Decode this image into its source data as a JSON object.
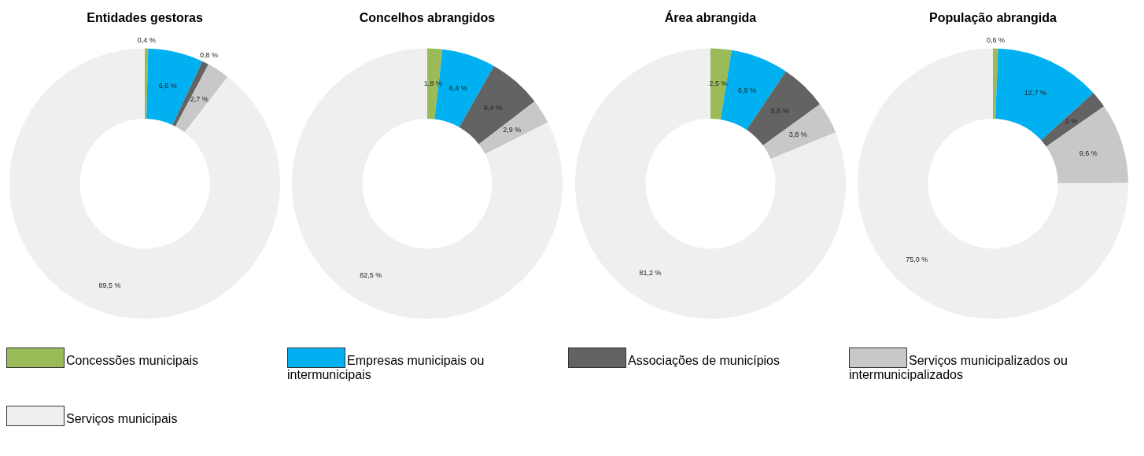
{
  "chart_data": [
    {
      "type": "donut",
      "title": "Entidades gestoras",
      "legend": "bottom",
      "categories": [
        "Concessões municipais",
        "Empresas municipais ou intermunicipais",
        "Associações de municípios",
        "Serviços municipalizados ou intermunicipalizados",
        "Serviços municipais"
      ],
      "colors": [
        "#9bbb59",
        "#00b0f0",
        "#636363",
        "#c8c8c8",
        "#efefef"
      ],
      "values": [
        0.4,
        6.6,
        0.8,
        2.7,
        89.5
      ],
      "value_labels": [
        "0,4 %",
        "6,6 %",
        "0,8 %",
        "2,7 %",
        "89,5 %"
      ]
    },
    {
      "type": "donut",
      "title": "Concelhos abrangidos",
      "colors": [
        "#9bbb59",
        "#00b0f0",
        "#636363",
        "#c8c8c8",
        "#efefef"
      ],
      "values": [
        1.8,
        6.4,
        6.4,
        2.9,
        82.5
      ],
      "value_labels": [
        "1,8 %",
        "6,4 %",
        "6,4 %",
        "2,9 %",
        "82,5 %"
      ]
    },
    {
      "type": "donut",
      "title": "Área abrangida",
      "colors": [
        "#9bbb59",
        "#00b0f0",
        "#636363",
        "#c8c8c8",
        "#efefef"
      ],
      "values": [
        2.5,
        6.9,
        5.6,
        3.8,
        81.2
      ],
      "value_labels": [
        "2,5 %",
        "6,9 %",
        "5,6 %",
        "3,8 %",
        "81,2 %"
      ]
    },
    {
      "type": "donut",
      "title": "População abrangida",
      "colors": [
        "#9bbb59",
        "#00b0f0",
        "#636363",
        "#c8c8c8",
        "#efefef"
      ],
      "values": [
        0.6,
        12.7,
        2,
        9.6,
        75
      ],
      "value_labels": [
        "0,6 %",
        "12,7 %",
        "2 %",
        "9,6 %",
        "75,0 %"
      ]
    }
  ]
}
